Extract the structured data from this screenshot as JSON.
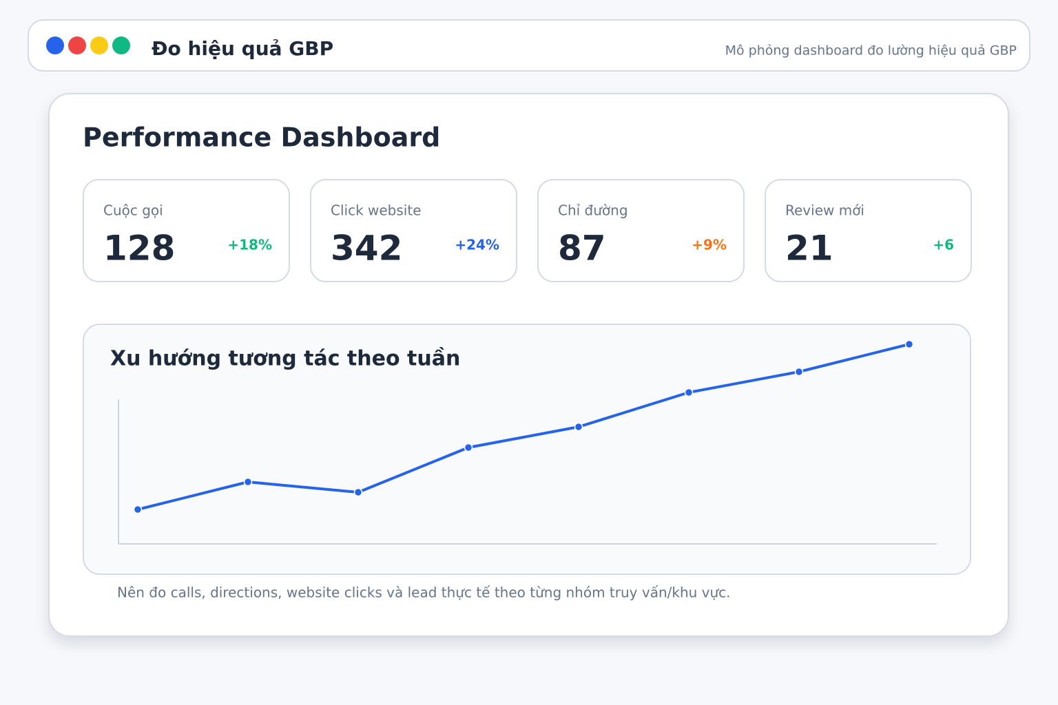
{
  "header": {
    "title": "Đo hiệu quả GBP",
    "subtitle": "Mô phỏng dashboard đo lường hiệu quả GBP"
  },
  "dashboard": {
    "title": "Performance Dashboard",
    "cards": [
      {
        "label": "Cuộc gọi",
        "value": 128,
        "change": "+18%",
        "color": "#10b981"
      },
      {
        "label": "Click website",
        "value": 342,
        "change": "+24%",
        "color": "#2563eb"
      },
      {
        "label": "Chỉ đường",
        "value": 87,
        "change": "+9%",
        "color": "#f97316"
      },
      {
        "label": "Review mới",
        "value": 21,
        "change": "+6",
        "color": "#10b981"
      }
    ]
  },
  "chart_data": {
    "type": "line",
    "title": "Xu hướng tương tác theo tuần",
    "categories": [
      null,
      null,
      null,
      null,
      null,
      null,
      null,
      null
    ],
    "series": [
      {
        "color": "#2563eb",
        "values": [
          50,
          90,
          75,
          140,
          170,
          220,
          250,
          290
        ]
      }
    ],
    "ylim": [
      0,
      300
    ]
  },
  "note": "Nên đo calls, directions, website clicks và lead thực tế theo từng nhóm truy vấn/khu vực."
}
